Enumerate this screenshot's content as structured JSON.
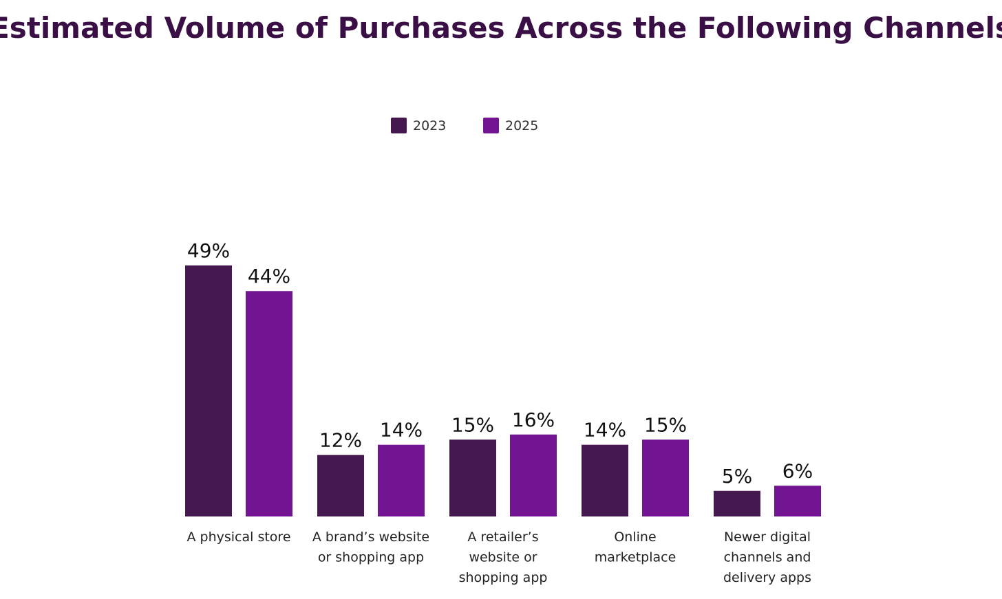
{
  "chart_data": {
    "type": "bar",
    "title": "Estimated Volume of Purchases Across the Following Channels",
    "xlabel": "",
    "ylabel": "",
    "ylim": [
      0,
      49
    ],
    "grid": false,
    "legend_position": "top-center",
    "categories": [
      [
        "A physical store"
      ],
      [
        "A brand’s website",
        "or shopping app"
      ],
      [
        "A retailer’s",
        "website or",
        "shopping app"
      ],
      [
        "Online",
        "marketplace"
      ],
      [
        "Newer digital",
        "channels and",
        "delivery apps"
      ]
    ],
    "series": [
      {
        "name": "2023",
        "color": "#45184f",
        "values": [
          49,
          12,
          15,
          14,
          5
        ],
        "labels": [
          "49%",
          "12%",
          "15%",
          "14%",
          "5%"
        ]
      },
      {
        "name": "2025",
        "color": "#731592",
        "values": [
          44,
          14,
          16,
          15,
          6
        ],
        "labels": [
          "44%",
          "14%",
          "16%",
          "15%",
          "6%"
        ]
      }
    ]
  }
}
